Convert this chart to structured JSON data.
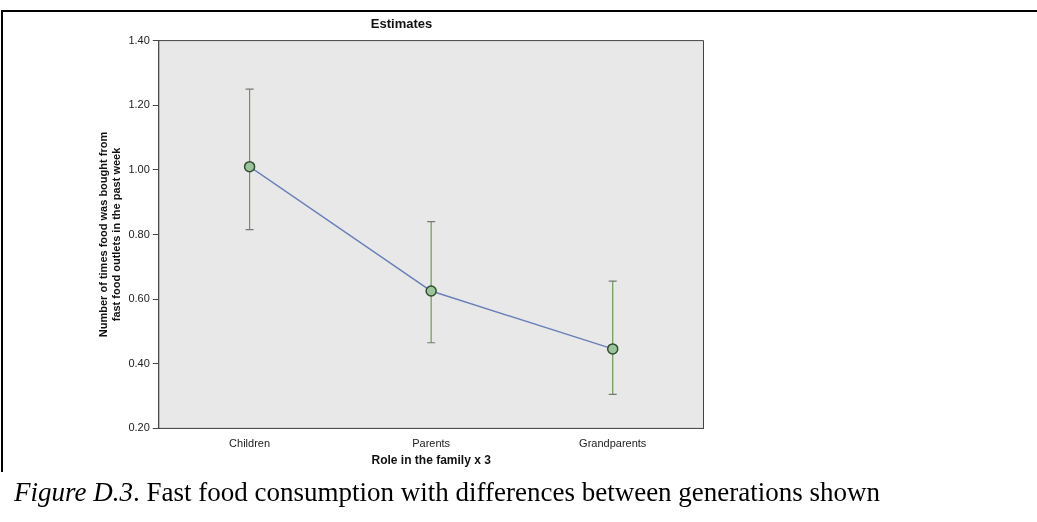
{
  "chart_data": {
    "type": "line",
    "title": "Estimates",
    "xlabel": "Role in the family x 3",
    "ylabel": "Number of times food was bought from fast food outlets in the past week",
    "categories": [
      "Children",
      "Parents",
      "Grandparents"
    ],
    "series": [
      {
        "color": "#6a80b8",
        "values": [
          1.01,
          0.625,
          0.446
        ],
        "errors": [
          [
            0.815,
            1.25
          ],
          [
            0.465,
            0.84
          ],
          [
            0.305,
            0.656
          ]
        ]
      }
    ],
    "ylim": [
      0.2,
      1.4
    ],
    "yticks": [
      {
        "value": 0.2,
        "label": "0.20"
      },
      {
        "value": 0.4,
        "label": "0.40"
      },
      {
        "value": 0.6,
        "label": "0.60"
      },
      {
        "value": 0.8,
        "label": "0.80"
      },
      {
        "value": 1.0,
        "label": "1.00"
      },
      {
        "value": 1.2,
        "label": "1.20"
      },
      {
        "value": 1.4,
        "label": "1.40"
      }
    ],
    "grid": false,
    "legend": false,
    "marker": "circle",
    "line_style": "solid",
    "annotations": [
      "Figure D.3. Fast food consumption with differences between generations shown"
    ]
  }
}
